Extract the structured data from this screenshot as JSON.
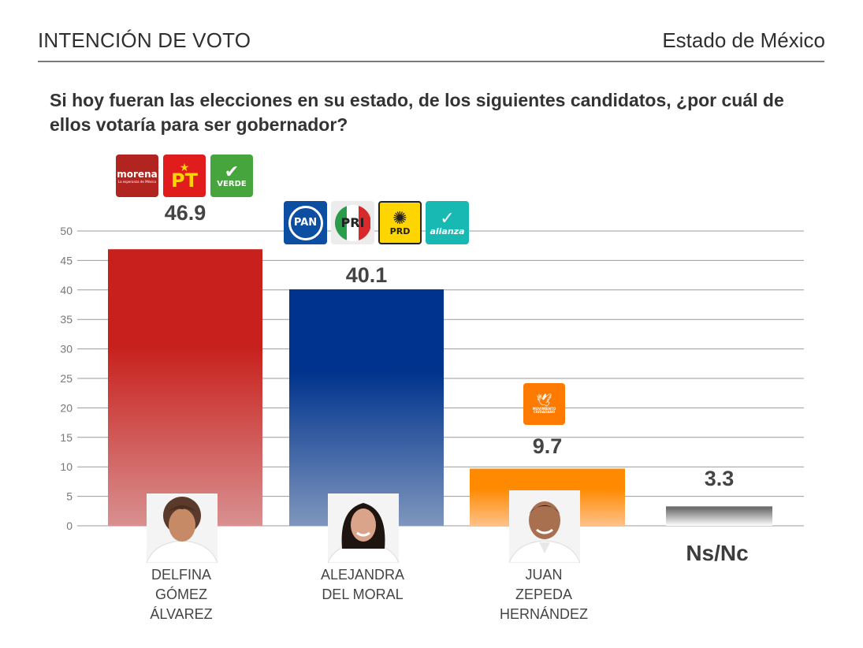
{
  "header": {
    "title": "INTENCIÓN DE VOTO",
    "state": "Estado de México"
  },
  "question": "Si hoy fueran las elecciones en su estado, de los siguientes candidatos, ¿por cuál de ellos votaría para ser gobernador?",
  "logos": {
    "morena": "morena",
    "morena_sub": "La esperanza de México",
    "pt": "PT",
    "verde": "VERDE",
    "pan": "PAN",
    "pri": "PRI",
    "prd": "PRD",
    "alianza": "alianza",
    "mc": "MOVIMIENTO CIUDADANO"
  },
  "candidates": {
    "c1": [
      "DELFINA",
      "GÓMEZ",
      "ÁLVAREZ"
    ],
    "c2": [
      "ALEJANDRA",
      "DEL MORAL"
    ],
    "c3": [
      "JUAN",
      "ZEPEDA",
      "HERNÁNDEZ"
    ],
    "nsnc": "Ns/Nc"
  },
  "colors": {
    "red": "#c8201c",
    "blue": "#00338d",
    "orange": "#ff8a00",
    "gray": "#777777",
    "grid": "#9b9b9b"
  },
  "chart_data": {
    "type": "bar",
    "categories": [
      "DELFINA GÓMEZ ÁLVAREZ",
      "ALEJANDRA DEL MORAL",
      "JUAN ZEPEDA HERNÁNDEZ",
      "Ns/Nc"
    ],
    "values": [
      46.9,
      40.1,
      9.7,
      3.3
    ],
    "value_labels": [
      "46.9",
      "40.1",
      "9.7",
      "3.3"
    ],
    "bar_colors": [
      "#c8201c",
      "#00338d",
      "#ff8a00",
      "#777777"
    ],
    "y_ticks": [
      0,
      5,
      10,
      15,
      20,
      25,
      30,
      35,
      40,
      45,
      50
    ],
    "ylim": [
      0,
      50
    ],
    "grid": true,
    "xlabel": "",
    "ylabel": ""
  }
}
